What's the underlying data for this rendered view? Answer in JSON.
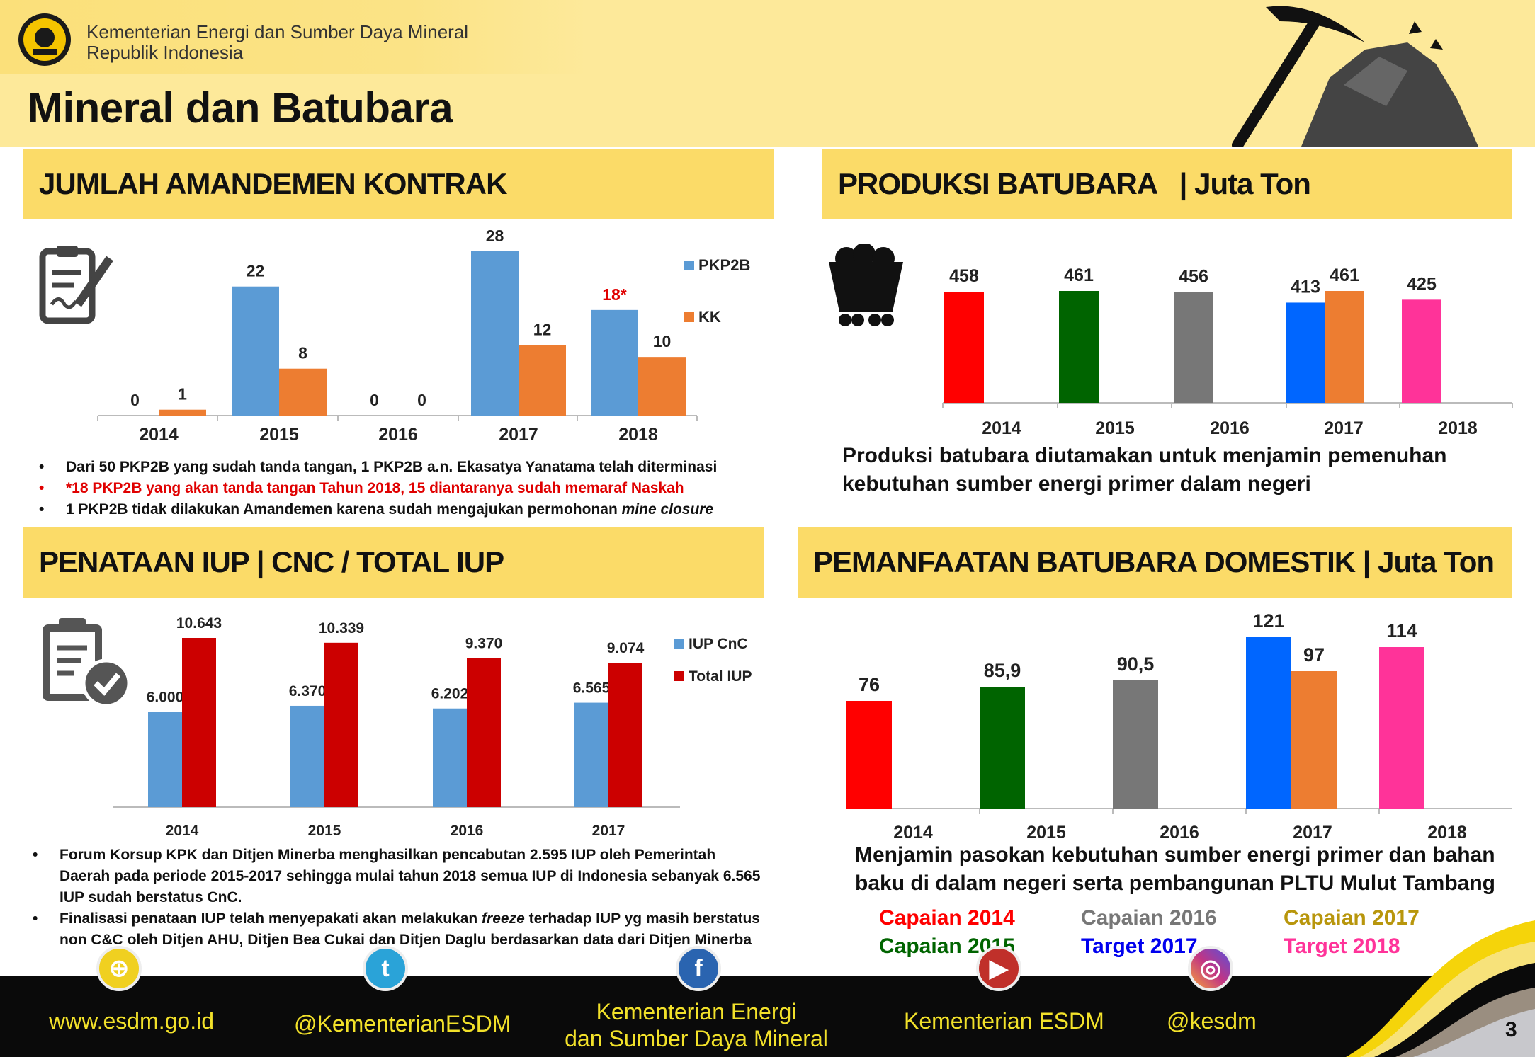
{
  "header": {
    "ministry_line1": "Kementerian Energi dan Sumber Daya Mineral",
    "ministry_line2": "Republik Indonesia",
    "title": "Mineral dan Batubara"
  },
  "sections": {
    "amandemen": {
      "title": "JUMLAH AMANDEMEN KONTRAK",
      "bullets": [
        {
          "text": "Dari 50 PKP2B yang sudah tanda tangan, 1 PKP2B a.n. Ekasatya Yanatama telah diterminasi"
        },
        {
          "text": "*18 PKP2B yang akan tanda tangan Tahun 2018, 15 diantaranya sudah memaraf Naskah"
        },
        {
          "text": "1 PKP2B tidak dilakukan Amandemen karena sudah mengajukan permohonan ",
          "italic": "mine closure"
        }
      ]
    },
    "produksi": {
      "title": "PRODUKSI BATUBARA   | Juta Ton",
      "caption_line1": "Produksi batubara diutamakan untuk menjamin pemenuhan",
      "caption_line2": "kebutuhan sumber energi primer dalam negeri"
    },
    "iup": {
      "title": "PENATAAN IUP | CNC / TOTAL IUP",
      "bullet1": "Forum Korsup KPK dan Ditjen Minerba menghasilkan pencabutan 2.595 IUP oleh Pemerintah Daerah pada periode 2015-2017 sehingga mulai tahun 2018 semua IUP di Indonesia sebanyak 6.565 IUP sudah berstatus CnC.",
      "bullet2_a": "Finalisasi penataan IUP telah menyepakati akan melakukan ",
      "bullet2_italic": "freeze",
      "bullet2_b": " terhadap IUP yg masih berstatus non C&C oleh Ditjen AHU, Ditjen Bea Cukai dan Ditjen Daglu berdasarkan data dari Ditjen Minerba"
    },
    "domestik": {
      "title": "PEMANFAATAN BATUBARA DOMESTIK | Juta Ton",
      "caption_line1": "Menjamin pasokan kebutuhan sumber energi primer dan bahan",
      "caption_line2": "baku di dalam negeri serta pembangunan PLTU Mulut Tambang",
      "legend": [
        {
          "label": "Capaian 2014",
          "color": "#ff0000"
        },
        {
          "label": "Capaian 2015",
          "color": "#006400"
        },
        {
          "label": "Capaian 2016",
          "color": "#777777"
        },
        {
          "label": "Target 2017",
          "color": "#0000ee"
        },
        {
          "label": "Capaian 2017",
          "color": "#b8960c"
        },
        {
          "label": "Target 2018",
          "color": "#ff3399"
        }
      ]
    }
  },
  "chart_data": [
    {
      "type": "bar",
      "categories": [
        "2014",
        "2015",
        "2016",
        "2017",
        "2018"
      ],
      "series": [
        {
          "name": "PKP2B",
          "color": "#5b9bd5",
          "values": [
            0,
            22,
            0,
            28,
            18
          ],
          "labels": [
            "0",
            "22",
            "0",
            "28",
            "18*"
          ]
        },
        {
          "name": "KK",
          "color": "#ed7d31",
          "values": [
            1,
            8,
            0,
            12,
            10
          ],
          "labels": [
            "1",
            "8",
            "0",
            "12",
            "10"
          ]
        }
      ],
      "highlight_label_color": "#e00000",
      "legend": "right"
    },
    {
      "type": "bar",
      "categories": [
        "2014",
        "2015",
        "2016",
        "2017",
        "2018"
      ],
      "bars": [
        {
          "category": "2014",
          "value": 458,
          "label": "458",
          "color": "#ff0000"
        },
        {
          "category": "2015",
          "value": 461,
          "label": "461",
          "color": "#006400"
        },
        {
          "category": "2016",
          "value": 456,
          "label": "456",
          "color": "#777777"
        },
        {
          "category": "2017",
          "value": 413,
          "label": "413",
          "color": "#0066ff"
        },
        {
          "category": "2017",
          "value": 461,
          "label": "461",
          "color": "#ed7d31"
        },
        {
          "category": "2018",
          "value": 425,
          "label": "425",
          "color": "#ff3399"
        }
      ]
    },
    {
      "type": "bar",
      "categories": [
        "2014",
        "2015",
        "2016",
        "2017"
      ],
      "series": [
        {
          "name": "IUP CnC",
          "color": "#5b9bd5",
          "values": [
            6000,
            6370,
            6202,
            6565
          ],
          "labels": [
            "6.000",
            "6.370",
            "6.202",
            "6.565"
          ]
        },
        {
          "name": "Total IUP",
          "color": "#cc0000",
          "values": [
            10643,
            10339,
            9370,
            9074
          ],
          "labels": [
            "10.643",
            "10.339",
            "9.370",
            "9.074"
          ]
        }
      ],
      "legend": "right"
    },
    {
      "type": "bar",
      "categories": [
        "2014",
        "2015",
        "2016",
        "2017",
        "2018"
      ],
      "bars": [
        {
          "category": "2014",
          "value": 76,
          "label": "76",
          "color": "#ff0000"
        },
        {
          "category": "2015",
          "value": 85.9,
          "label": "85,9",
          "color": "#006400"
        },
        {
          "category": "2016",
          "value": 90.5,
          "label": "90,5",
          "color": "#777777"
        },
        {
          "category": "2017",
          "value": 121,
          "label": "121",
          "color": "#0066ff"
        },
        {
          "category": "2017",
          "value": 97,
          "label": "97",
          "color": "#ed7d31"
        },
        {
          "category": "2018",
          "value": 114,
          "label": "114",
          "color": "#ff3399"
        }
      ]
    }
  ],
  "footer": {
    "website": "www.esdm.go.id",
    "twitter": "@KementerianESDM",
    "facebook_line1": "Kementerian Energi",
    "facebook_line2": "dan Sumber Daya Mineral",
    "youtube": "Kementerian ESDM",
    "instagram": "@kesdm",
    "page_number": "3"
  }
}
